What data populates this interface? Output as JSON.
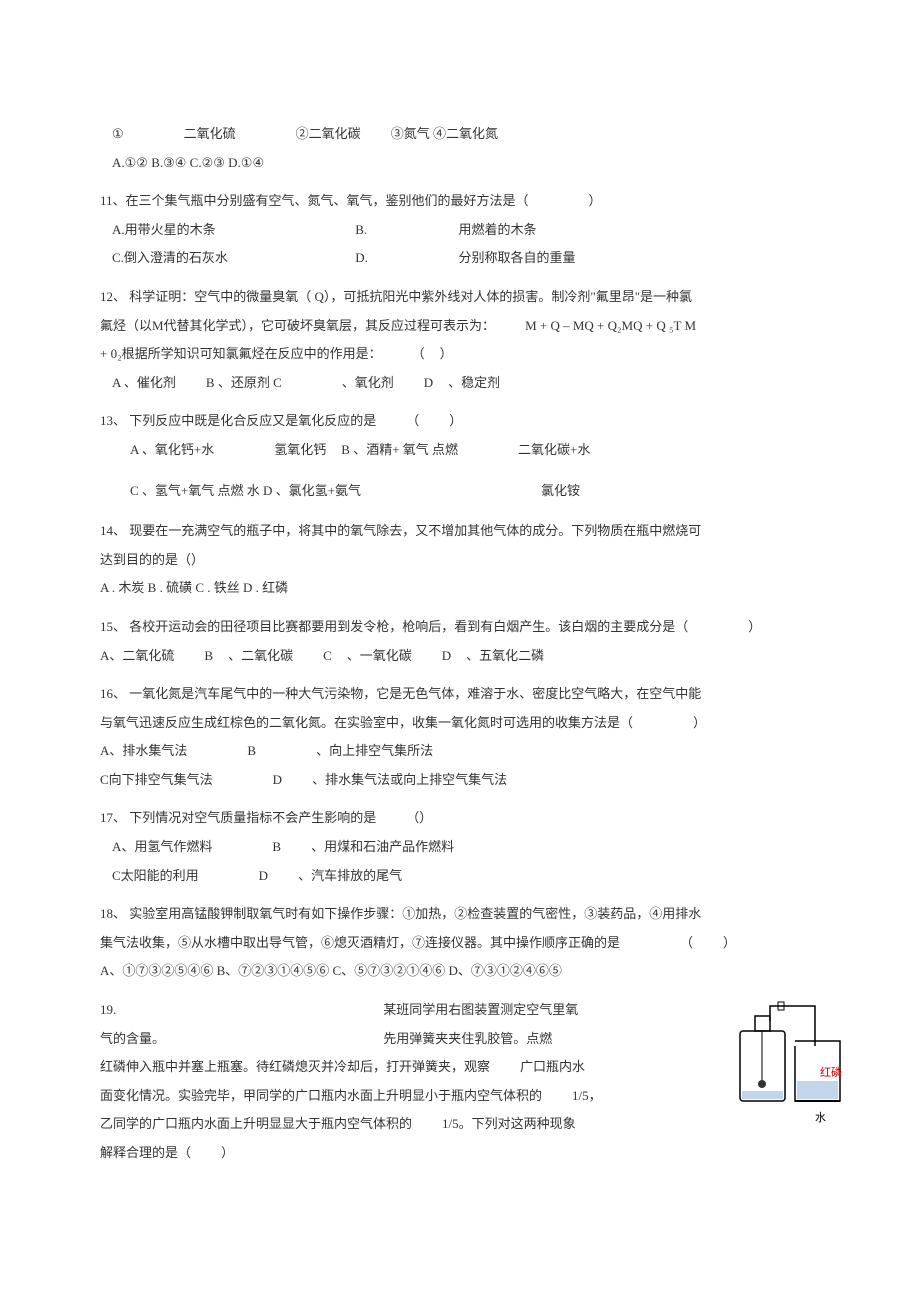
{
  "q10_items": "①<span class='wide-gap'></span>二氧化硫<span class='wide-gap'></span>②二氧化碳<span class='med-gap'></span>③氮气 ④二氧化氮",
  "q10_options": "A.①② B.③④ C.②③ D.①④",
  "q11": {
    "stem": "11、在三个集气瓶中分别盛有空气、氮气、氧气，鉴别他们的最好方法是（<span class='wide-gap'></span>）",
    "optA": "A.用带火星的木条",
    "optB": "B.",
    "optB_text": "用燃着的木条",
    "optC": "C.倒入澄清的石灰水",
    "optD": "D.",
    "optD_text": "分别称取各自的重量"
  },
  "q12": {
    "stem1": "12、 科学证明：空气中的微量臭氧（ Q），可抵抗阳光中紫外线对人体的损害。制冷剂\"氟里昂\"是一种氯",
    "stem2": "氟烃（以M代替其化学式），它可破坏臭氧层，其反应过程可表示为：<span class='med-gap'></span>M + Q – MQ + Q₂MQ + Q ₅T M",
    "stem3": "+ 0₂根据所学知识可知氯氟烃在反应中的作用是：<span class='med-gap'></span>（<span class='small-gap'></span>）",
    "options": "A 、催化剂<span class='med-gap'></span>B 、还原剂 C<span class='wide-gap'></span>、氧化剂<span class='med-gap'></span>D<span class='small-gap'></span>、稳定剂"
  },
  "q13": {
    "stem": "13、 下列反应中既是化合反应又是氧化反应的是<span class='med-gap'></span>（<span class='med-gap'></span>）",
    "optAB": "A 、氧化钙+水<span class='wide-gap'></span>氢氧化钙<span class='small-gap'></span>B 、酒精+ 氧气 点燃<span class='wide-gap'></span>二氧化碳+水",
    "optCD": "C 、氢气+氧气 点燃 水 D 、氯化氢+氨气<span class='wide-gap'></span><span class='wide-gap'></span><span class='wide-gap'></span>氯化铵"
  },
  "q14": {
    "stem1": "14、 现要在一充满空气的瓶子中，将其中的氧气除去，又不增加其他气体的成分。下列物质在瓶中燃烧可",
    "stem2": "达到目的的是（）",
    "options": "A . 木炭 B . 硫磺 C . 铁丝 D . 红磷"
  },
  "q15": {
    "stem": "15、 各校开运动会的田径项目比赛都要用到发令枪，枪响后，看到有白烟产生。该白烟的主要成分是（<span class='wide-gap'></span>）",
    "options": "A、二氧化硫<span class='med-gap'></span>B<span class='small-gap'></span>、二氧化碳<span class='med-gap'></span>C<span class='small-gap'></span>、一氧化碳<span class='med-gap'></span>D<span class='small-gap'></span>、五氧化二磷"
  },
  "q16": {
    "stem1": "16、 一氧化氮是汽车尾气中的一种大气污染物，它是无色气体，难溶于水、密度比空气略大，在空气中能",
    "stem2": "与氧气迅速反应生成红棕色的二氧化氮。在实验室中，收集一氧化氮时可选用的收集方法是（<span class='wide-gap'></span>）",
    "optAB": "A、排水集气法<span class='wide-gap'></span>B<span class='wide-gap'></span>、向上排空气集所法",
    "optCD": "C向下排空气集气法<span class='wide-gap'></span>D<span class='med-gap'></span>、排水集气法或向上排空气集气法"
  },
  "q17": {
    "stem": "17、 下列情况对空气质量指标不会产生影响的是<span class='med-gap'></span>（）",
    "optAB": "A、用氢气作燃料<span class='wide-gap'></span>B<span class='med-gap'></span>、用煤和石油产品作燃料",
    "optCD": "C太阳能的利用<span class='wide-gap'></span>D<span class='med-gap'></span>、汽车排放的尾气"
  },
  "q18": {
    "stem1": "18、 实验室用高锰酸钾制取氧气时有如下操作步骤：①加热，②检查装置的气密性，③装药品，④用排水",
    "stem2": "集气法收集，⑤从水槽中取出导气管，⑥熄灭酒精灯，⑦连接仪器。其中操作顺序正确的是<span class='wide-gap'></span>（<span class='med-gap'></span>）",
    "options": "A、①⑦③②⑤④⑥ B、⑦②③①④⑤⑥ C、⑤⑦③②①④⑥ D、⑦③①②④⑥⑤"
  },
  "q19": {
    "line1a": "19.",
    "line1b": "某班同学用右图装置测定空气里氧",
    "line2a": "气的含量。",
    "line2b": "先用弹簧夹夹住乳胶管。点燃",
    "line3": "红磷伸入瓶中并塞上瓶塞。待红磷熄灭并冷却后，打开弹簧夹，观察<span class='med-gap'></span>广口瓶内水",
    "line4": "面变化情况。实验完毕，甲同学的广口瓶内水面上升明显小于瓶内空气体积的<span class='med-gap'></span>1/5，",
    "line5": "乙同学的广口瓶内水面上升明显显大于瓶内空气体积的<span class='med-gap'></span>1/5。下列对这两种现象",
    "line6": "解释合理的是（<span class='med-gap'></span>）",
    "img_label1": "红磷",
    "img_label2": "水"
  },
  "colors": {
    "text": "#333333",
    "background": "#ffffff",
    "diagram_line": "#000000",
    "diagram_red": "#cc0000",
    "diagram_blue": "#6699cc"
  }
}
